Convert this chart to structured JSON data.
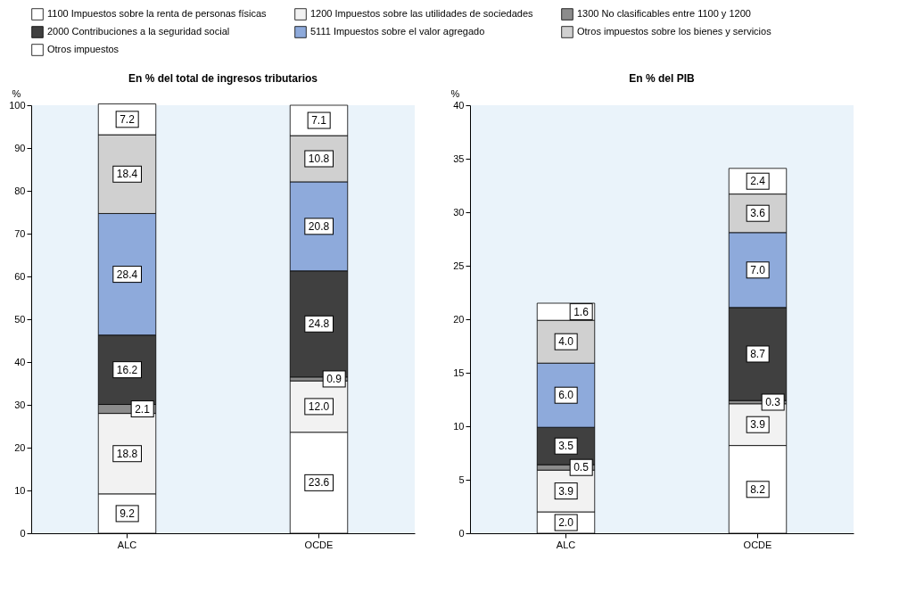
{
  "chart_data": [
    {
      "type": "bar",
      "stacked": true,
      "title": "En % del total de ingresos tributarios",
      "ylabel": "%",
      "categories": [
        "ALC",
        "OCDE"
      ],
      "ylim": [
        0,
        100
      ],
      "yticks": [
        0,
        10,
        20,
        30,
        40,
        50,
        60,
        70,
        80,
        90,
        100
      ],
      "legend": "top",
      "series": [
        {
          "name": "1100 Impuestos sobre la renta de personas físicas",
          "color": "#ffffff",
          "values": [
            9.2,
            23.6
          ],
          "value_labels": [
            "9.2",
            "23.6"
          ]
        },
        {
          "name": "1200 Impuestos sobre las utilidades de sociedades",
          "color": "#f2f2f2",
          "values": [
            18.8,
            12.0
          ],
          "value_labels": [
            "18.8",
            "12.0"
          ]
        },
        {
          "name": "1300 No clasificables entre 1100 y 1200",
          "color": "#8c8c8c",
          "values": [
            2.1,
            0.9
          ],
          "value_labels": [
            "2.1",
            "0.9"
          ]
        },
        {
          "name": "2000 Contribuciones a la seguridad social",
          "color": "#404040",
          "values": [
            16.2,
            24.8
          ],
          "value_labels": [
            "16.2",
            "24.8"
          ]
        },
        {
          "name": "5111 Impuestos sobre el valor agregado",
          "color": "#8eaadb",
          "values": [
            28.4,
            20.8
          ],
          "value_labels": [
            "28.4",
            "20.8"
          ]
        },
        {
          "name": "Otros impuestos sobre los bienes y servicios",
          "color": "#d0d0d0",
          "values": [
            18.4,
            10.8
          ],
          "value_labels": [
            "18.4",
            "10.8"
          ]
        },
        {
          "name": "Otros impuestos",
          "color": "#ffffff",
          "values": [
            7.2,
            7.1
          ],
          "value_labels": [
            "7.2",
            "7.1"
          ]
        }
      ]
    },
    {
      "type": "bar",
      "stacked": true,
      "title": "En % del PIB",
      "ylabel": "%",
      "categories": [
        "ALC",
        "OCDE"
      ],
      "ylim": [
        0,
        40
      ],
      "yticks": [
        0,
        5,
        10,
        15,
        20,
        25,
        30,
        35,
        40
      ],
      "legend": "top",
      "series": [
        {
          "name": "1100 Impuestos sobre la renta de personas físicas",
          "color": "#ffffff",
          "values": [
            2.0,
            8.2
          ],
          "value_labels": [
            "2.0",
            "8.2"
          ]
        },
        {
          "name": "1200 Impuestos sobre las utilidades de sociedades",
          "color": "#f2f2f2",
          "values": [
            3.9,
            3.9
          ],
          "value_labels": [
            "3.9",
            "3.9"
          ]
        },
        {
          "name": "1300 No clasificables entre 1100 y 1200",
          "color": "#8c8c8c",
          "values": [
            0.5,
            0.3
          ],
          "value_labels": [
            "0.5",
            "0.3"
          ]
        },
        {
          "name": "2000 Contribuciones a la seguridad social",
          "color": "#404040",
          "values": [
            3.5,
            8.7
          ],
          "value_labels": [
            "3.5",
            "8.7"
          ]
        },
        {
          "name": "5111 Impuestos sobre el valor agregado",
          "color": "#8eaadb",
          "values": [
            6.0,
            7.0
          ],
          "value_labels": [
            "6.0",
            "7.0"
          ]
        },
        {
          "name": "Otros impuestos sobre los bienes y servicios",
          "color": "#d0d0d0",
          "values": [
            4.0,
            3.6
          ],
          "value_labels": [
            "4.0",
            "3.6"
          ]
        },
        {
          "name": "Otros impuestos",
          "color": "#ffffff",
          "values": [
            1.6,
            2.4
          ],
          "value_labels": [
            "1.6",
            "2.4"
          ]
        }
      ]
    }
  ]
}
